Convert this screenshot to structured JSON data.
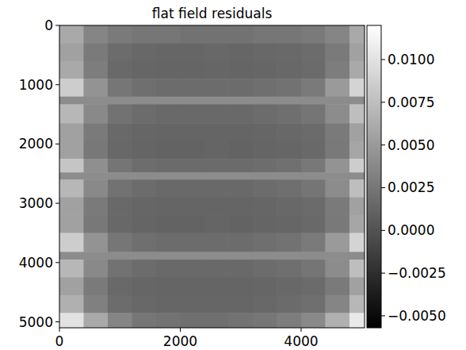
{
  "chart_data": {
    "type": "heatmap",
    "title": "flat field residuals",
    "color": "gray",
    "grid": false,
    "xlim": [
      0,
      5050
    ],
    "ylim": [
      5100,
      0
    ],
    "xticks": [
      0,
      2000,
      4000
    ],
    "yticks": [
      0,
      1000,
      2000,
      3000,
      4000,
      5000
    ],
    "x_edges": [
      0,
      400,
      800,
      1200,
      1600,
      2000,
      2400,
      2800,
      3200,
      3600,
      4000,
      4400,
      4800,
      5050
    ],
    "y_edges": [
      0,
      300,
      600,
      900,
      1200,
      1330,
      1650,
      1950,
      2250,
      2480,
      2600,
      2900,
      3200,
      3500,
      3820,
      3950,
      4250,
      4550,
      4850,
      5100
    ],
    "cells": [
      [
        0.006,
        0.0035,
        0.0028,
        0.0025,
        0.0025,
        0.0022,
        0.0022,
        0.0022,
        0.0025,
        0.0025,
        0.0028,
        0.0035,
        0.006
      ],
      [
        0.0055,
        0.0028,
        0.0018,
        0.0015,
        0.0014,
        0.0014,
        0.0015,
        0.0014,
        0.0015,
        0.0016,
        0.0018,
        0.0028,
        0.0055
      ],
      [
        0.006,
        0.003,
        0.0016,
        0.0014,
        0.0013,
        0.0013,
        0.0014,
        0.0013,
        0.0014,
        0.0015,
        0.0017,
        0.003,
        0.006
      ],
      [
        0.0085,
        0.0045,
        0.0025,
        0.002,
        0.0018,
        0.0018,
        0.0018,
        0.0018,
        0.002,
        0.0022,
        0.0028,
        0.005,
        0.009
      ],
      [
        0.004,
        0.004,
        0.004,
        0.004,
        0.004,
        0.004,
        0.004,
        0.004,
        0.004,
        0.004,
        0.004,
        0.004,
        0.004
      ],
      [
        0.007,
        0.0038,
        0.0022,
        0.0018,
        0.0016,
        0.0016,
        0.0016,
        0.0016,
        0.0018,
        0.002,
        0.0024,
        0.004,
        0.0075
      ],
      [
        0.0055,
        0.0028,
        0.0016,
        0.0014,
        0.0013,
        0.0013,
        0.0013,
        0.0013,
        0.0014,
        0.0015,
        0.0017,
        0.0028,
        0.0055
      ],
      [
        0.0055,
        0.0026,
        0.0015,
        0.0013,
        0.0012,
        0.0012,
        0.0013,
        0.0012,
        0.0013,
        0.0014,
        0.0016,
        0.0027,
        0.0058
      ],
      [
        0.008,
        0.0042,
        0.0024,
        0.0019,
        0.0017,
        0.0017,
        0.0017,
        0.0017,
        0.0019,
        0.0021,
        0.0026,
        0.0045,
        0.0085
      ],
      [
        0.004,
        0.004,
        0.004,
        0.004,
        0.004,
        0.004,
        0.004,
        0.004,
        0.004,
        0.004,
        0.004,
        0.004,
        0.004
      ],
      [
        0.007,
        0.0038,
        0.0022,
        0.0018,
        0.0016,
        0.0016,
        0.0016,
        0.0016,
        0.0018,
        0.002,
        0.0024,
        0.004,
        0.0075
      ],
      [
        0.0055,
        0.0028,
        0.0016,
        0.0014,
        0.0013,
        0.0013,
        0.0013,
        0.0013,
        0.0014,
        0.0015,
        0.0017,
        0.0028,
        0.0055
      ],
      [
        0.0055,
        0.0026,
        0.0015,
        0.0013,
        0.0012,
        0.0012,
        0.0013,
        0.0012,
        0.0013,
        0.0014,
        0.0016,
        0.0027,
        0.0058
      ],
      [
        0.0085,
        0.0045,
        0.0025,
        0.002,
        0.0018,
        0.0018,
        0.0018,
        0.0018,
        0.002,
        0.0022,
        0.0028,
        0.005,
        0.009
      ],
      [
        0.004,
        0.004,
        0.004,
        0.004,
        0.004,
        0.004,
        0.004,
        0.004,
        0.004,
        0.004,
        0.004,
        0.004,
        0.004
      ],
      [
        0.007,
        0.0038,
        0.0022,
        0.0018,
        0.0016,
        0.0016,
        0.0016,
        0.0016,
        0.0018,
        0.002,
        0.0024,
        0.004,
        0.0075
      ],
      [
        0.0055,
        0.0028,
        0.0016,
        0.0014,
        0.0013,
        0.0013,
        0.0013,
        0.0013,
        0.0014,
        0.0015,
        0.0017,
        0.0028,
        0.0055
      ],
      [
        0.0065,
        0.0032,
        0.0018,
        0.0015,
        0.0014,
        0.0014,
        0.0014,
        0.0014,
        0.0015,
        0.0017,
        0.002,
        0.0035,
        0.007
      ],
      [
        0.01,
        0.006,
        0.0035,
        0.0025,
        0.0022,
        0.002,
        0.002,
        0.0022,
        0.0025,
        0.003,
        0.0038,
        0.0065,
        0.0105
      ]
    ],
    "color_range": [
      -0.0057,
      0.012
    ],
    "color_ticks": [
      {
        "value": 0.01,
        "label": "0.0100"
      },
      {
        "value": 0.0075,
        "label": "0.0075"
      },
      {
        "value": 0.005,
        "label": "0.0050"
      },
      {
        "value": 0.0025,
        "label": "0.0025"
      },
      {
        "value": 0,
        "label": "0.0000"
      },
      {
        "value": -0.0025,
        "label": "−0.0025"
      },
      {
        "value": -0.005,
        "label": "−0.0050"
      }
    ]
  }
}
